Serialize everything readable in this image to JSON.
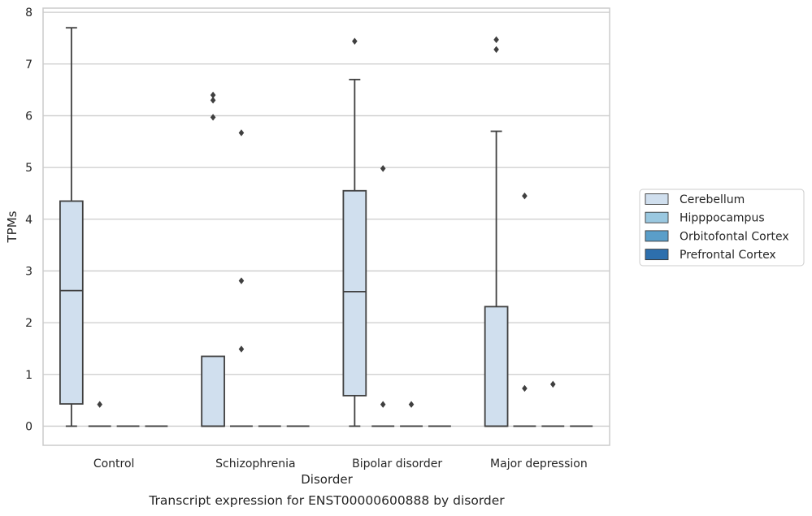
{
  "chart_data": {
    "type": "box",
    "title": "",
    "caption": "Transcript expression for ENST00000600888 by disorder",
    "xlabel": "Disorder",
    "ylabel": "TPMs",
    "ylim": [
      -0.37,
      8.08
    ],
    "yticks": [
      0,
      1,
      2,
      3,
      4,
      5,
      6,
      7,
      8
    ],
    "grid": "horizontal",
    "legend_position": "right",
    "categories": [
      "Control",
      "Schizophrenia",
      "Bipolar disorder",
      "Major depression"
    ],
    "series": [
      {
        "name": "Cerebellum",
        "color": "#d0dfee",
        "boxes": [
          {
            "category": "Control",
            "whisker_low": 0,
            "q1": 0.43,
            "median": 2.62,
            "q3": 4.35,
            "whisker_high": 7.7,
            "outliers": []
          },
          {
            "category": "Schizophrenia",
            "whisker_low": 0,
            "q1": 0,
            "median": 0,
            "q3": 1.35,
            "whisker_high": 1.35,
            "outliers": [
              5.97,
              6.3,
              6.4
            ]
          },
          {
            "category": "Bipolar disorder",
            "whisker_low": 0,
            "q1": 0.59,
            "median": 2.6,
            "q3": 4.55,
            "whisker_high": 6.7,
            "outliers": [
              7.44
            ]
          },
          {
            "category": "Major depression",
            "whisker_low": 0,
            "q1": 0,
            "median": 0,
            "q3": 2.31,
            "whisker_high": 5.7,
            "outliers": [
              7.28,
              7.47
            ]
          }
        ]
      },
      {
        "name": "Hipppocampus",
        "color": "#9ac8e0",
        "boxes": [
          {
            "category": "Control",
            "whisker_low": 0,
            "q1": 0,
            "median": 0,
            "q3": 0,
            "whisker_high": 0,
            "outliers": [
              0.42
            ]
          },
          {
            "category": "Schizophrenia",
            "whisker_low": 0,
            "q1": 0,
            "median": 0,
            "q3": 0,
            "whisker_high": 0,
            "outliers": [
              1.49,
              2.81,
              5.67
            ]
          },
          {
            "category": "Bipolar disorder",
            "whisker_low": 0,
            "q1": 0,
            "median": 0,
            "q3": 0,
            "whisker_high": 0,
            "outliers": [
              0.42,
              4.98
            ]
          },
          {
            "category": "Major depression",
            "whisker_low": 0,
            "q1": 0,
            "median": 0,
            "q3": 0,
            "whisker_high": 0,
            "outliers": [
              0.73,
              4.45
            ]
          }
        ]
      },
      {
        "name": "Orbitofontal Cortex",
        "color": "#5a9ec9",
        "boxes": [
          {
            "category": "Control",
            "whisker_low": 0,
            "q1": 0,
            "median": 0,
            "q3": 0,
            "whisker_high": 0,
            "outliers": []
          },
          {
            "category": "Schizophrenia",
            "whisker_low": 0,
            "q1": 0,
            "median": 0,
            "q3": 0,
            "whisker_high": 0,
            "outliers": []
          },
          {
            "category": "Bipolar disorder",
            "whisker_low": 0,
            "q1": 0,
            "median": 0,
            "q3": 0,
            "whisker_high": 0,
            "outliers": [
              0.42
            ]
          },
          {
            "category": "Major depression",
            "whisker_low": 0,
            "q1": 0,
            "median": 0,
            "q3": 0,
            "whisker_high": 0,
            "outliers": [
              0.81
            ]
          }
        ]
      },
      {
        "name": "Prefrontal Cortex",
        "color": "#2d6fad",
        "boxes": [
          {
            "category": "Control",
            "whisker_low": 0,
            "q1": 0,
            "median": 0,
            "q3": 0,
            "whisker_high": 0,
            "outliers": []
          },
          {
            "category": "Schizophrenia",
            "whisker_low": 0,
            "q1": 0,
            "median": 0,
            "q3": 0,
            "whisker_high": 0,
            "outliers": []
          },
          {
            "category": "Bipolar disorder",
            "whisker_low": 0,
            "q1": 0,
            "median": 0,
            "q3": 0,
            "whisker_high": 0,
            "outliers": []
          },
          {
            "category": "Major depression",
            "whisker_low": 0,
            "q1": 0,
            "median": 0,
            "q3": 0,
            "whisker_high": 0,
            "outliers": []
          }
        ]
      }
    ]
  }
}
